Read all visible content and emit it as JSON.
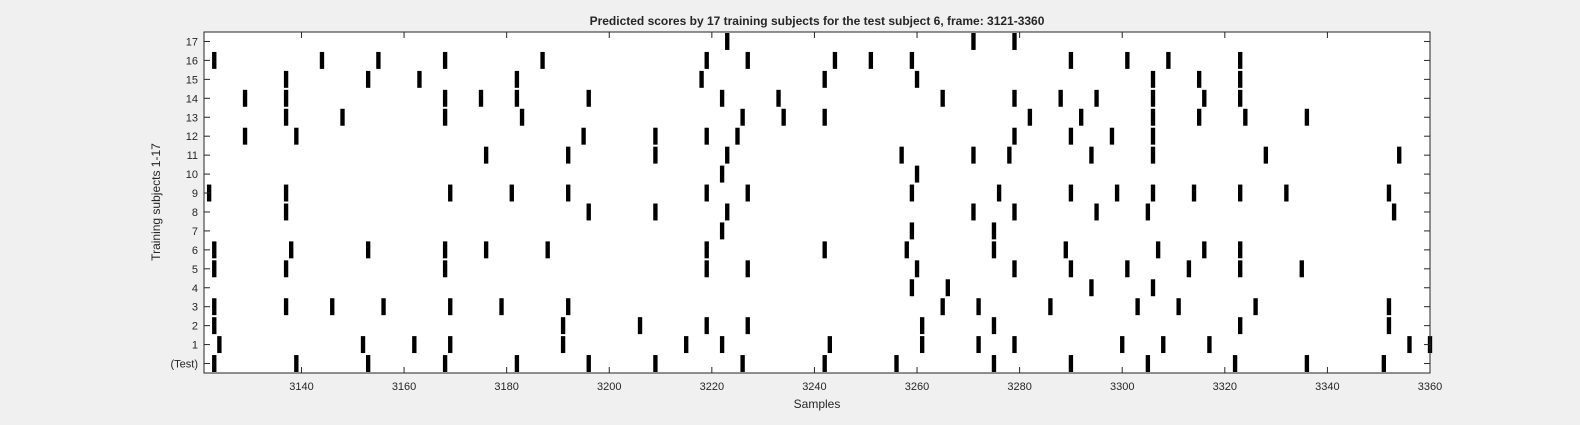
{
  "chart_data": {
    "type": "raster",
    "title": "Predicted scores by 17 training subjects for the test subject 6, frame: 3121-3360",
    "xlabel": "Samples",
    "ylabel": "Training subjects 1-17",
    "xlim": [
      3121,
      3360
    ],
    "xticks": [
      3140,
      3160,
      3180,
      3200,
      3220,
      3240,
      3260,
      3280,
      3300,
      3320,
      3340,
      3360
    ],
    "rows": [
      "(Test)",
      "1",
      "2",
      "3",
      "4",
      "5",
      "6",
      "7",
      "8",
      "9",
      "10",
      "11",
      "12",
      "13",
      "14",
      "15",
      "16",
      "17"
    ],
    "colors": {
      "mark": "#000000",
      "axes_bg": "#ffffff",
      "figure_bg": "#f0f0f0"
    },
    "events": [
      {
        "row": "(Test)",
        "samples": [
          3123,
          3139,
          3153,
          3168,
          3182,
          3196,
          3209,
          3226,
          3242,
          3256,
          3275,
          3290,
          3305,
          3322,
          3336,
          3351
        ]
      },
      {
        "row": "1",
        "samples": [
          3124,
          3152,
          3162,
          3169,
          3191,
          3215,
          3222,
          3243,
          3261,
          3272,
          3279,
          3300,
          3308,
          3317,
          3356,
          3360
        ]
      },
      {
        "row": "2",
        "samples": [
          3123,
          3191,
          3206,
          3219,
          3227,
          3261,
          3275,
          3323,
          3352
        ]
      },
      {
        "row": "3",
        "samples": [
          3123,
          3137,
          3146,
          3156,
          3169,
          3179,
          3192,
          3265,
          3272,
          3286,
          3303,
          3311,
          3326,
          3352
        ]
      },
      {
        "row": "4",
        "samples": [
          3259,
          3266,
          3294,
          3306
        ]
      },
      {
        "row": "5",
        "samples": [
          3123,
          3137,
          3168,
          3219,
          3227,
          3260,
          3279,
          3290,
          3301,
          3313,
          3323,
          3335
        ]
      },
      {
        "row": "6",
        "samples": [
          3123,
          3138,
          3153,
          3168,
          3176,
          3188,
          3219,
          3242,
          3258,
          3275,
          3289,
          3307,
          3316,
          3323
        ]
      },
      {
        "row": "7",
        "samples": [
          3222,
          3259,
          3275
        ]
      },
      {
        "row": "8",
        "samples": [
          3137,
          3196,
          3209,
          3223,
          3271,
          3279,
          3295,
          3305,
          3353
        ]
      },
      {
        "row": "9",
        "samples": [
          3122,
          3137,
          3169,
          3181,
          3192,
          3219,
          3227,
          3259,
          3276,
          3290,
          3299,
          3306,
          3314,
          3323,
          3332,
          3352
        ]
      },
      {
        "row": "10",
        "samples": [
          3222,
          3260
        ]
      },
      {
        "row": "11",
        "samples": [
          3176,
          3192,
          3209,
          3223,
          3257,
          3271,
          3278,
          3294,
          3306,
          3328,
          3354
        ]
      },
      {
        "row": "12",
        "samples": [
          3129,
          3139,
          3195,
          3209,
          3219,
          3225,
          3279,
          3290,
          3298,
          3306
        ]
      },
      {
        "row": "13",
        "samples": [
          3137,
          3148,
          3168,
          3183,
          3226,
          3234,
          3242,
          3282,
          3292,
          3306,
          3315,
          3324,
          3336
        ]
      },
      {
        "row": "14",
        "samples": [
          3129,
          3137,
          3168,
          3175,
          3182,
          3196,
          3222,
          3233,
          3265,
          3279,
          3288,
          3295,
          3306,
          3316,
          3323
        ]
      },
      {
        "row": "15",
        "samples": [
          3137,
          3153,
          3163,
          3182,
          3218,
          3242,
          3260,
          3306,
          3315,
          3323
        ]
      },
      {
        "row": "16",
        "samples": [
          3123,
          3144,
          3155,
          3168,
          3187,
          3219,
          3227,
          3244,
          3251,
          3259,
          3290,
          3301,
          3309,
          3323
        ]
      },
      {
        "row": "17",
        "samples": [
          3223,
          3271,
          3279
        ]
      }
    ]
  }
}
